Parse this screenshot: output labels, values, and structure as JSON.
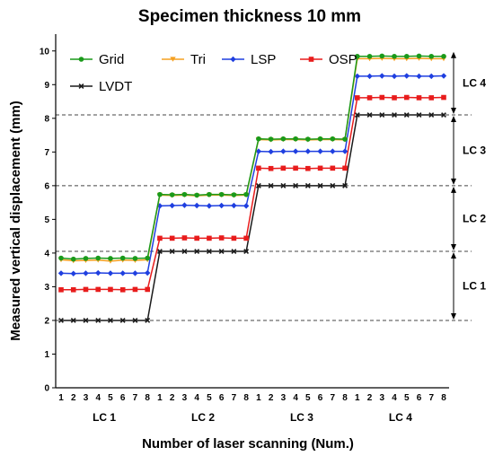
{
  "chart_data": {
    "type": "line",
    "title": "Specimen thickness 10 mm",
    "xlabel": "Number of laser scanning (Num.)",
    "ylabel": "Measured vertical displacement (mm)",
    "ylim": [
      0,
      10.5
    ],
    "yticks": [
      0,
      1,
      2,
      3,
      4,
      5,
      6,
      7,
      8,
      9,
      10
    ],
    "groups": [
      "LC 1",
      "LC 2",
      "LC 3",
      "LC 4"
    ],
    "scans_per_group": [
      "1",
      "2",
      "3",
      "4",
      "5",
      "6",
      "7",
      "8"
    ],
    "grid": false,
    "legend_position": "top-left",
    "series": [
      {
        "name": "Grid",
        "color": "#1a9a1a",
        "marker": "circle",
        "values": [
          [
            3.85,
            3.82,
            3.84,
            3.85,
            3.84,
            3.85,
            3.84,
            3.85
          ],
          [
            5.74,
            5.73,
            5.74,
            5.72,
            5.74,
            5.74,
            5.73,
            5.74
          ],
          [
            7.39,
            7.38,
            7.39,
            7.39,
            7.38,
            7.39,
            7.39,
            7.38
          ],
          [
            9.84,
            9.84,
            9.85,
            9.84,
            9.84,
            9.85,
            9.84,
            9.84
          ]
        ]
      },
      {
        "name": "Tri",
        "color": "#f5a020",
        "marker": "triangle-down",
        "values": [
          [
            3.8,
            3.77,
            3.78,
            3.79,
            3.76,
            3.79,
            3.78,
            3.8
          ],
          [
            5.72,
            5.71,
            5.72,
            5.7,
            5.72,
            5.72,
            5.71,
            5.72
          ],
          [
            7.37,
            7.36,
            7.37,
            7.37,
            7.36,
            7.37,
            7.37,
            7.36
          ],
          [
            9.77,
            9.77,
            9.78,
            9.77,
            9.77,
            9.78,
            9.77,
            9.77
          ]
        ]
      },
      {
        "name": "LSP",
        "color": "#1f3fe0",
        "marker": "diamond",
        "values": [
          [
            3.4,
            3.39,
            3.4,
            3.41,
            3.4,
            3.4,
            3.4,
            3.41
          ],
          [
            5.4,
            5.41,
            5.42,
            5.41,
            5.4,
            5.41,
            5.41,
            5.4
          ],
          [
            7.02,
            7.01,
            7.02,
            7.02,
            7.02,
            7.02,
            7.02,
            7.02
          ],
          [
            9.25,
            9.25,
            9.26,
            9.25,
            9.26,
            9.25,
            9.25,
            9.26
          ]
        ]
      },
      {
        "name": "OSP",
        "color": "#e81c1c",
        "marker": "square",
        "values": [
          [
            2.91,
            2.91,
            2.92,
            2.92,
            2.92,
            2.91,
            2.92,
            2.92
          ],
          [
            4.44,
            4.44,
            4.45,
            4.44,
            4.44,
            4.45,
            4.44,
            4.44
          ],
          [
            6.52,
            6.51,
            6.52,
            6.52,
            6.51,
            6.52,
            6.52,
            6.52
          ],
          [
            8.61,
            8.61,
            8.62,
            8.61,
            8.62,
            8.61,
            8.61,
            8.62
          ]
        ]
      },
      {
        "name": "LVDT",
        "color": "#1a1a1a",
        "marker": "cross",
        "values": [
          [
            2.0,
            2.0,
            2.0,
            2.0,
            2.0,
            2.0,
            2.0,
            2.0
          ],
          [
            4.05,
            4.05,
            4.05,
            4.05,
            4.05,
            4.05,
            4.05,
            4.05
          ],
          [
            6.0,
            6.0,
            6.0,
            6.0,
            6.0,
            6.0,
            6.0,
            6.0
          ],
          [
            8.1,
            8.1,
            8.1,
            8.1,
            8.1,
            8.1,
            8.1,
            8.1
          ]
        ]
      }
    ],
    "reference_lines": [
      2.0,
      4.05,
      6.0,
      8.1
    ],
    "load_case_brackets": [
      {
        "label": "LC 1",
        "from": 2.0,
        "to": 4.05
      },
      {
        "label": "LC 2",
        "from": 4.05,
        "to": 6.0
      },
      {
        "label": "LC 3",
        "from": 6.0,
        "to": 8.1
      },
      {
        "label": "LC 4",
        "from": 8.1,
        "to": 10.0
      }
    ]
  }
}
